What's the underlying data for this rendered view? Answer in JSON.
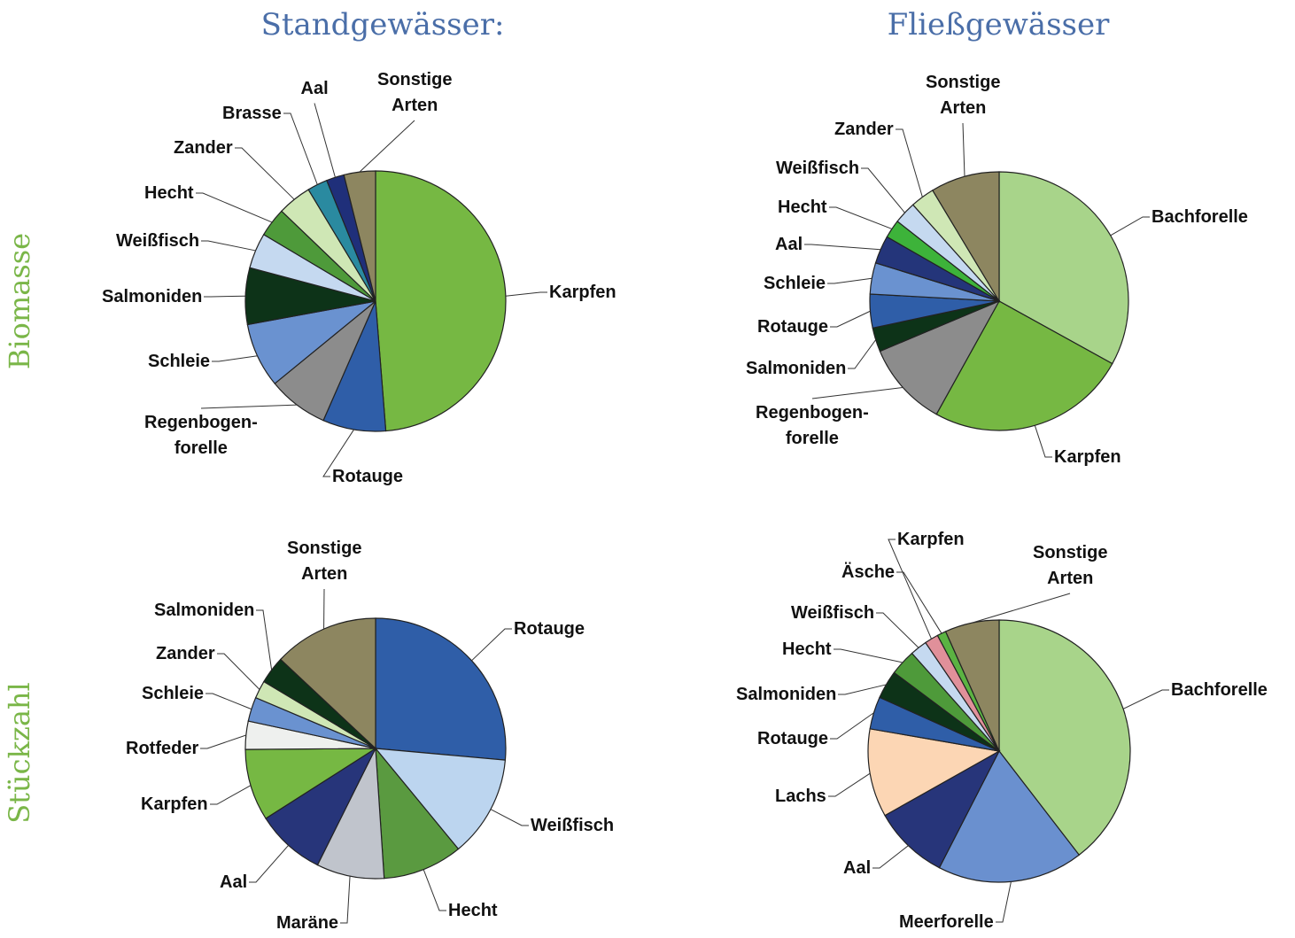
{
  "column_titles": [
    "Standgewässer:",
    "Fließgewässer"
  ],
  "row_titles": [
    "Biomasse",
    "Stückzahl"
  ],
  "chart_data": [
    {
      "type": "pie",
      "categories": [
        "Karpfen",
        "Rotauge",
        "Regenbogen-\nforelle",
        "Schleie",
        "Salmoniden",
        "Weißfisch",
        "Hecht",
        "Zander",
        "Brasse",
        "Aal",
        "Sonstige\nArten"
      ],
      "values": [
        48.6,
        7.8,
        7.5,
        8,
        7,
        4.4,
        3.6,
        4.2,
        2.5,
        2.2,
        3.9
      ],
      "colors": [
        "#76b843",
        "#2f5ea8",
        "#8c8c8c",
        "#6a92d0",
        "#0d3318",
        "#c5d9f0",
        "#4e9a3a",
        "#cfe7b5",
        "#2a8aa0",
        "#1f2f7a",
        "#8d8660"
      ]
    },
    {
      "type": "pie",
      "categories": [
        "Bachforelle",
        "Karpfen",
        "Regenbogen-\nforelle",
        "Salmoniden",
        "Rotauge",
        "Schleie",
        "Aal",
        "Hecht",
        "Weißfisch",
        "Zander",
        "Sonstige\nArten"
      ],
      "values": [
        33,
        25,
        10.6,
        3,
        4.2,
        3.9,
        3.5,
        2.3,
        2.8,
        3,
        8.6
      ],
      "colors": [
        "#a8d48a",
        "#76b843",
        "#8c8c8c",
        "#0d3318",
        "#2f5ea8",
        "#6a92d0",
        "#24357a",
        "#3db33a",
        "#c5d9f0",
        "#cfe7b5",
        "#8d8660"
      ]
    },
    {
      "type": "pie",
      "categories": [
        "Rotauge",
        "Weißfisch",
        "Hecht",
        "Maräne",
        "Aal",
        "Karpfen",
        "Rotfeder",
        "Schleie",
        "Zander",
        "Salmoniden",
        "Sonstige\nArten"
      ],
      "values": [
        26.4,
        12.6,
        9.9,
        8.4,
        8.6,
        8.9,
        3.5,
        3,
        2.2,
        3.4,
        13
      ],
      "colors": [
        "#2f5ea8",
        "#bcd5ef",
        "#5a9a40",
        "#c0c4cc",
        "#27357a",
        "#76b843",
        "#eef0ee",
        "#6a92d0",
        "#cfe7b5",
        "#0d3318",
        "#8d8660"
      ]
    },
    {
      "type": "pie",
      "categories": [
        "Bachforelle",
        "Meerforelle",
        "Aal",
        "Lachs",
        "Rotauge",
        "Salmoniden",
        "Hecht",
        "Weißfisch",
        "Karpfen",
        "Äsche",
        "Sonstige\nArten"
      ],
      "values": [
        39.6,
        18,
        9.3,
        10.9,
        4,
        3.5,
        3.2,
        2.1,
        1.7,
        1.1,
        6.7
      ],
      "colors": [
        "#a8d48a",
        "#6a90cf",
        "#27357a",
        "#fcd6b4",
        "#2f5ea8",
        "#0d3318",
        "#4e9a3a",
        "#c5d9f0",
        "#e0909a",
        "#5bb342",
        "#8d8660"
      ]
    }
  ]
}
